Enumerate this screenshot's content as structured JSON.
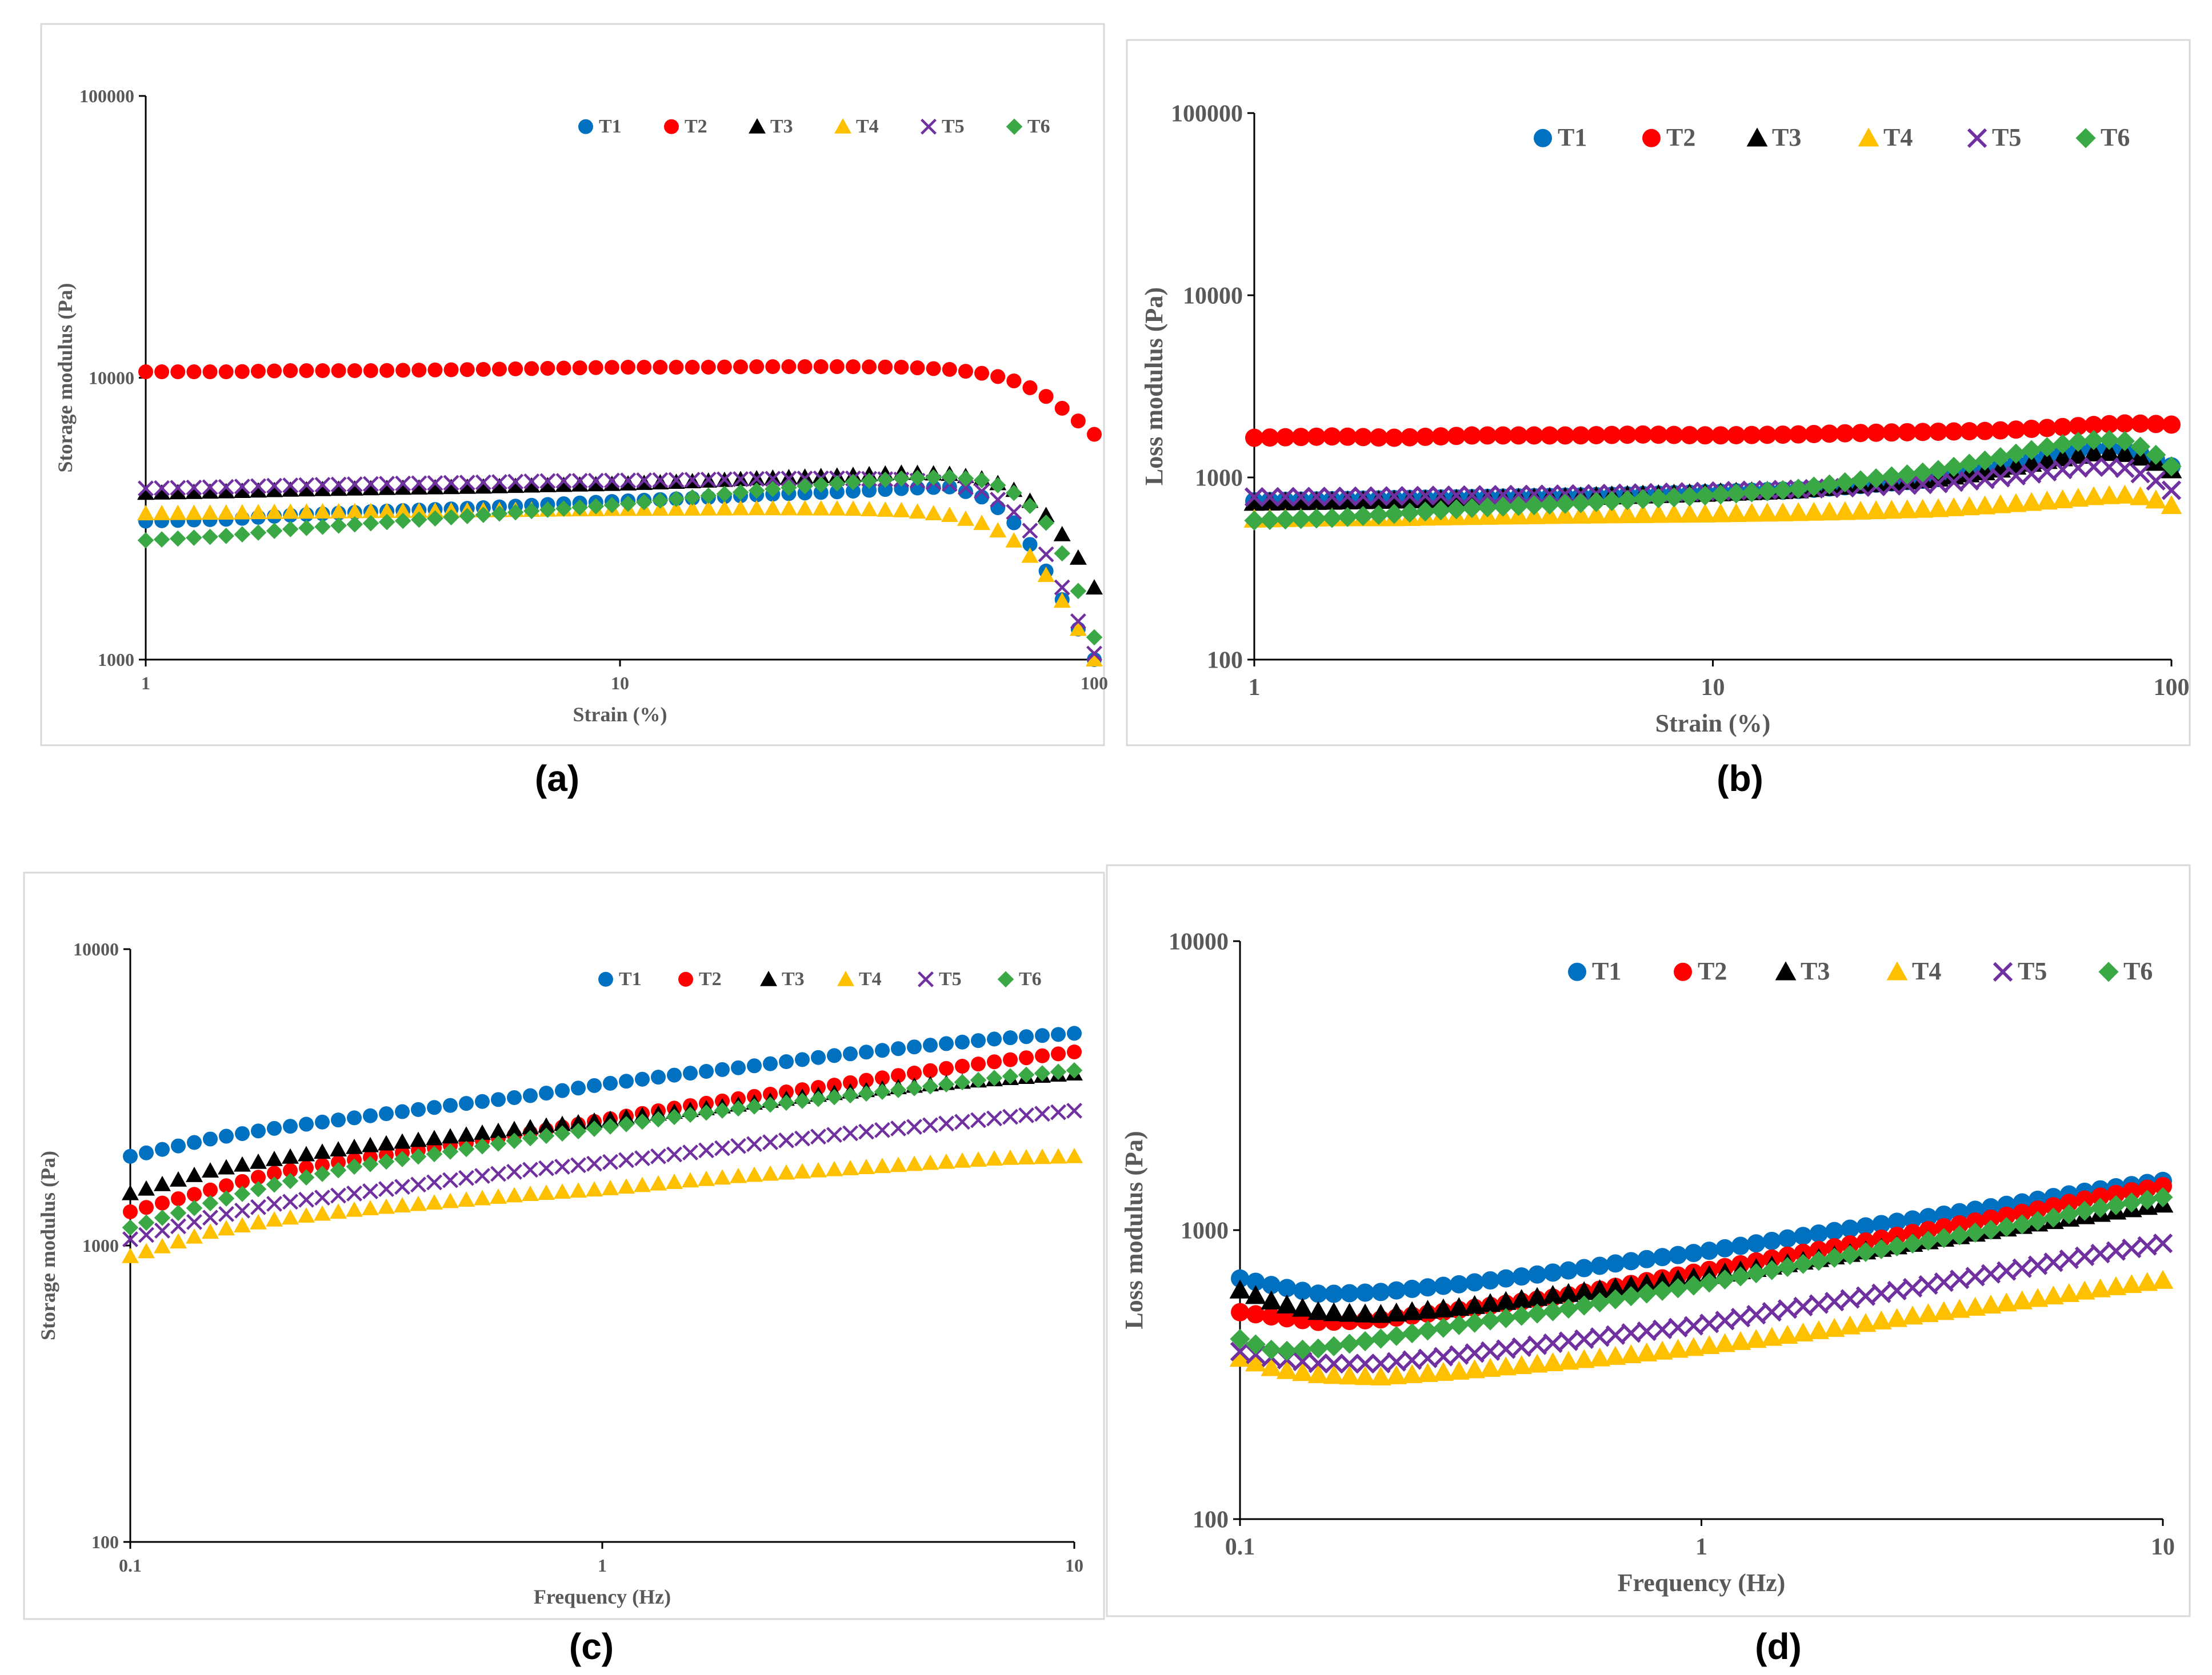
{
  "colors": {
    "T1": "#0070c0",
    "T2": "#ff0000",
    "T3": "#000000",
    "T4": "#ffc000",
    "T5": "#7030a0",
    "T6": "#3aa845",
    "axis": "#000000",
    "tick_text": "#595959",
    "frame": "#d9d9d9"
  },
  "legend_markers": {
    "T1": "circle",
    "T2": "circle",
    "T3": "triangle",
    "T4": "triangle",
    "T5": "cross",
    "T6": "diamond"
  },
  "chart_data": [
    {
      "id": "a",
      "type": "scatter",
      "caption": "(a)",
      "title": "",
      "xlabel": "Strain (%)",
      "ylabel": "Storage modulus (Pa)",
      "xscale": "log",
      "yscale": "log",
      "xlim": [
        1,
        100
      ],
      "ylim": [
        1000,
        100000
      ],
      "xticks": [
        1,
        10,
        100
      ],
      "xtick_labels": [
        "1",
        "10",
        "100"
      ],
      "yticks": [
        1000,
        10000,
        100000
      ],
      "ytick_labels": [
        "1000",
        "10000",
        "100000"
      ],
      "legend": [
        "T1",
        "T2",
        "T3",
        "T4",
        "T5",
        "T6"
      ],
      "legend_position": "top-right",
      "x": [
        1,
        1.5,
        2,
        3,
        5,
        7,
        10,
        15,
        20,
        30,
        40,
        50,
        60,
        70,
        80,
        90,
        100
      ],
      "series": [
        {
          "name": "T1",
          "values": [
            3100,
            3150,
            3250,
            3350,
            3450,
            3550,
            3650,
            3750,
            3850,
            3950,
            4050,
            4100,
            3700,
            2900,
            2000,
            1400,
            1000
          ]
        },
        {
          "name": "T2",
          "values": [
            10500,
            10500,
            10600,
            10600,
            10700,
            10800,
            10900,
            10900,
            10950,
            10950,
            10900,
            10700,
            10300,
            9600,
            8500,
            7300,
            6300
          ]
        },
        {
          "name": "T3",
          "values": [
            3900,
            3950,
            4000,
            4050,
            4100,
            4150,
            4200,
            4300,
            4400,
            4500,
            4600,
            4550,
            4350,
            3900,
            3200,
            2500,
            1800
          ]
        },
        {
          "name": "T4",
          "values": [
            3300,
            3320,
            3340,
            3360,
            3380,
            3400,
            3420,
            3430,
            3440,
            3430,
            3380,
            3250,
            3000,
            2550,
            1950,
            1400,
            1000
          ]
        },
        {
          "name": "T5",
          "values": [
            4050,
            4100,
            4150,
            4200,
            4250,
            4300,
            4320,
            4350,
            4380,
            4400,
            4350,
            4200,
            3900,
            3200,
            2300,
            1500,
            1050
          ]
        },
        {
          "name": "T6",
          "values": [
            2650,
            2750,
            2900,
            3050,
            3250,
            3400,
            3550,
            3800,
            4000,
            4250,
            4400,
            4450,
            4300,
            3800,
            3000,
            2000,
            1200
          ]
        }
      ]
    },
    {
      "id": "b",
      "type": "scatter",
      "caption": "(b)",
      "title": "",
      "xlabel": "Strain (%)",
      "ylabel": "Loss modulus (Pa)",
      "xscale": "log",
      "yscale": "log",
      "xlim": [
        1,
        100
      ],
      "ylim": [
        100,
        100000
      ],
      "xticks": [
        1,
        10,
        100
      ],
      "xtick_labels": [
        "1",
        "10",
        "100"
      ],
      "yticks": [
        100,
        1000,
        10000,
        100000
      ],
      "ytick_labels": [
        "100",
        "1000",
        "10000",
        "100000"
      ],
      "legend": [
        "T1",
        "T2",
        "T3",
        "T4",
        "T5",
        "T6"
      ],
      "legend_position": "top-right",
      "x": [
        1,
        1.5,
        2,
        3,
        5,
        7,
        10,
        15,
        20,
        30,
        40,
        50,
        60,
        70,
        80,
        90,
        100
      ],
      "series": [
        {
          "name": "T1",
          "values": [
            740,
            750,
            760,
            770,
            785,
            800,
            820,
            850,
            900,
            980,
            1100,
            1250,
            1380,
            1450,
            1420,
            1300,
            1150
          ]
        },
        {
          "name": "T2",
          "values": [
            1650,
            1680,
            1650,
            1700,
            1700,
            1720,
            1700,
            1720,
            1750,
            1780,
            1800,
            1850,
            1900,
            1950,
            1980,
            1970,
            1950
          ]
        },
        {
          "name": "T3",
          "values": [
            730,
            740,
            750,
            760,
            780,
            800,
            820,
            850,
            900,
            980,
            1080,
            1200,
            1300,
            1380,
            1350,
            1250,
            1100
          ]
        },
        {
          "name": "T4",
          "values": [
            590,
            600,
            600,
            610,
            620,
            625,
            630,
            640,
            650,
            670,
            700,
            730,
            760,
            790,
            800,
            770,
            700
          ]
        },
        {
          "name": "T5",
          "values": [
            780,
            785,
            790,
            800,
            810,
            820,
            840,
            860,
            880,
            920,
            980,
            1050,
            1120,
            1150,
            1120,
            1000,
            850
          ]
        },
        {
          "name": "T6",
          "values": [
            580,
            600,
            630,
            680,
            720,
            760,
            800,
            860,
            950,
            1080,
            1250,
            1420,
            1550,
            1620,
            1580,
            1400,
            1150
          ]
        }
      ]
    },
    {
      "id": "c",
      "type": "scatter",
      "caption": "(c)",
      "title": "",
      "xlabel": "Frequency (Hz)",
      "ylabel": "Storage modulus (Pa)",
      "xscale": "log",
      "yscale": "log",
      "xlim": [
        0.1,
        10
      ],
      "ylim": [
        100,
        10000
      ],
      "xticks": [
        0.1,
        1,
        10
      ],
      "xtick_labels": [
        "0.1",
        "1",
        "10"
      ],
      "yticks": [
        100,
        1000,
        10000
      ],
      "ytick_labels": [
        "100",
        "1000",
        "10000"
      ],
      "legend": [
        "T1",
        "T2",
        "T3",
        "T4",
        "T5",
        "T6"
      ],
      "legend_position": "top-right",
      "x": [
        0.1,
        0.15,
        0.2,
        0.3,
        0.5,
        0.7,
        1,
        1.5,
        2,
        3,
        5,
        7,
        10
      ],
      "series": [
        {
          "name": "T1",
          "values": [
            2000,
            2300,
            2480,
            2700,
            3000,
            3200,
            3500,
            3800,
            4000,
            4350,
            4750,
            5000,
            5200
          ]
        },
        {
          "name": "T2",
          "values": [
            1300,
            1550,
            1750,
            1950,
            2200,
            2400,
            2650,
            2950,
            3150,
            3450,
            3900,
            4200,
            4500
          ]
        },
        {
          "name": "T3",
          "values": [
            1500,
            1800,
            1950,
            2150,
            2350,
            2500,
            2650,
            2850,
            3000,
            3250,
            3500,
            3650,
            3800
          ]
        },
        {
          "name": "T4",
          "values": [
            920,
            1120,
            1220,
            1320,
            1420,
            1490,
            1550,
            1650,
            1720,
            1800,
            1900,
            1970,
            2000
          ]
        },
        {
          "name": "T5",
          "values": [
            1050,
            1250,
            1380,
            1500,
            1680,
            1800,
            1900,
            2050,
            2180,
            2350,
            2550,
            2700,
            2850
          ]
        },
        {
          "name": "T6",
          "values": [
            1150,
            1400,
            1600,
            1850,
            2100,
            2300,
            2500,
            2750,
            2920,
            3150,
            3450,
            3700,
            3900
          ]
        }
      ]
    },
    {
      "id": "d",
      "type": "scatter",
      "caption": "(d)",
      "title": "",
      "xlabel": "Frequency (Hz)",
      "ylabel": "Loss modulus (Pa)",
      "xscale": "log",
      "yscale": "log",
      "xlim": [
        0.1,
        10
      ],
      "ylim": [
        100,
        10000
      ],
      "xticks": [
        0.1,
        1,
        10
      ],
      "xtick_labels": [
        "0.1",
        "1",
        "10"
      ],
      "yticks": [
        100,
        1000,
        10000
      ],
      "ytick_labels": [
        "100",
        "1000",
        "10000"
      ],
      "legend": [
        "T1",
        "T2",
        "T3",
        "T4",
        "T5",
        "T6"
      ],
      "legend_position": "top-right",
      "x": [
        0.1,
        0.12,
        0.15,
        0.2,
        0.3,
        0.5,
        0.7,
        1,
        1.5,
        2,
        3,
        5,
        7,
        10
      ],
      "series": [
        {
          "name": "T1",
          "values": [
            680,
            640,
            600,
            610,
            650,
            720,
            780,
            840,
            930,
            1000,
            1100,
            1250,
            1370,
            1480
          ]
        },
        {
          "name": "T2",
          "values": [
            520,
            500,
            480,
            490,
            530,
            590,
            650,
            720,
            810,
            880,
            990,
            1150,
            1290,
            1420
          ]
        },
        {
          "name": "T3",
          "values": [
            620,
            560,
            520,
            510,
            540,
            600,
            640,
            690,
            760,
            820,
            910,
            1040,
            1130,
            1230
          ]
        },
        {
          "name": "T4",
          "values": [
            360,
            330,
            315,
            310,
            325,
            350,
            370,
            395,
            430,
            460,
            510,
            570,
            620,
            670
          ]
        },
        {
          "name": "T5",
          "values": [
            380,
            360,
            345,
            345,
            370,
            410,
            440,
            470,
            530,
            570,
            640,
            740,
            820,
            900
          ]
        },
        {
          "name": "T6",
          "values": [
            420,
            380,
            390,
            420,
            470,
            530,
            590,
            650,
            740,
            810,
            910,
            1050,
            1180,
            1300
          ]
        }
      ]
    }
  ]
}
